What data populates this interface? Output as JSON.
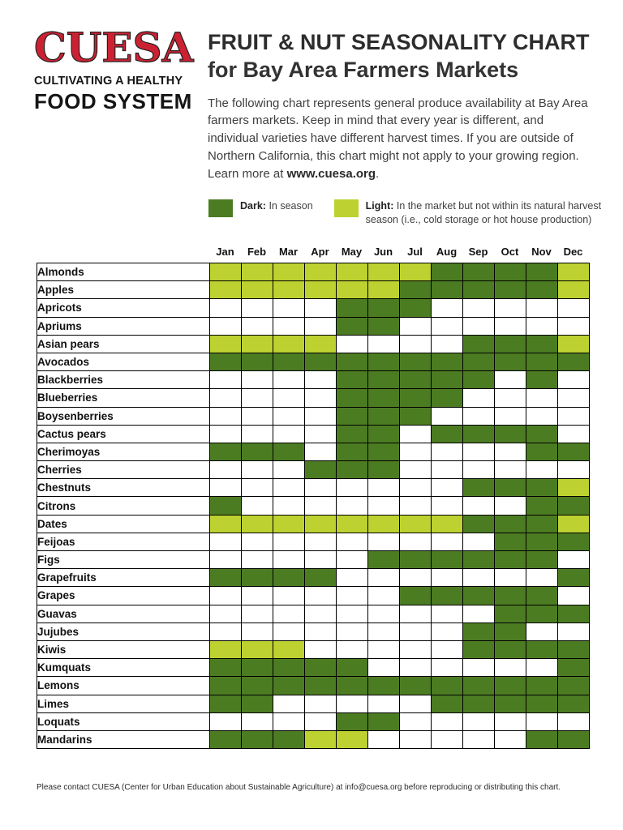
{
  "logo": {
    "name": "CUESA",
    "tagline_line1": "CULTIVATING A HEALTHY",
    "tagline_line2": "FOOD SYSTEM"
  },
  "header": {
    "title_line1": "FRUIT & NUT SEASONALITY CHART",
    "title_line2": "for Bay Area Farmers Markets",
    "description": "The following chart represents general produce availability at Bay Area farmers markets. Keep in mind that every year is different, and individual varieties have different harvest times. If you are outside of Northern California, this chart might not apply to your growing region. Learn more at ",
    "description_link": "www.cuesa.org",
    "description_suffix": "."
  },
  "legend": {
    "dark": {
      "label": "Dark:",
      "text": "In season"
    },
    "light": {
      "label": "Light:",
      "text": "In the market but not within its natural harvest season (i.e., cold storage or hot house production)"
    }
  },
  "colors": {
    "dark_green": "#4c7c22",
    "light_green": "#bdd230",
    "logo_red": "#cb2233"
  },
  "chart_data": {
    "type": "heatmap",
    "title": "Fruit & Nut Seasonality Chart for Bay Area Farmers Markets",
    "columns": [
      "Jan",
      "Feb",
      "Mar",
      "Apr",
      "May",
      "Jun",
      "Jul",
      "Aug",
      "Sep",
      "Oct",
      "Nov",
      "Dec"
    ],
    "legend_meaning": {
      "dark": "In season",
      "light": "In the market but not within natural harvest season",
      "none": "Not available"
    },
    "rows": [
      {
        "label": "Almonds",
        "cells": [
          "light",
          "light",
          "light",
          "light",
          "light",
          "light",
          "light",
          "dark",
          "dark",
          "dark",
          "dark",
          "light"
        ]
      },
      {
        "label": "Apples",
        "cells": [
          "light",
          "light",
          "light",
          "light",
          "light",
          "light",
          "dark",
          "dark",
          "dark",
          "dark",
          "dark",
          "light"
        ]
      },
      {
        "label": "Apricots",
        "cells": [
          "none",
          "none",
          "none",
          "none",
          "dark",
          "dark",
          "dark",
          "none",
          "none",
          "none",
          "none",
          "none"
        ]
      },
      {
        "label": "Apriums",
        "cells": [
          "none",
          "none",
          "none",
          "none",
          "dark",
          "dark",
          "none",
          "none",
          "none",
          "none",
          "none",
          "none"
        ]
      },
      {
        "label": "Asian pears",
        "cells": [
          "light",
          "light",
          "light",
          "light",
          "none",
          "none",
          "none",
          "none",
          "dark",
          "dark",
          "dark",
          "light"
        ]
      },
      {
        "label": "Avocados",
        "cells": [
          "dark",
          "dark",
          "dark",
          "dark",
          "dark",
          "dark",
          "dark",
          "dark",
          "dark",
          "dark",
          "dark",
          "dark"
        ]
      },
      {
        "label": "Blackberries",
        "cells": [
          "none",
          "none",
          "none",
          "none",
          "dark",
          "dark",
          "dark",
          "dark",
          "dark",
          "none",
          "dark",
          "none"
        ]
      },
      {
        "label": "Blueberries",
        "cells": [
          "none",
          "none",
          "none",
          "none",
          "dark",
          "dark",
          "dark",
          "dark",
          "none",
          "none",
          "none",
          "none"
        ]
      },
      {
        "label": "Boysenberries",
        "cells": [
          "none",
          "none",
          "none",
          "none",
          "dark",
          "dark",
          "dark",
          "none",
          "none",
          "none",
          "none",
          "none"
        ]
      },
      {
        "label": "Cactus pears",
        "cells": [
          "none",
          "none",
          "none",
          "none",
          "dark",
          "dark",
          "none",
          "dark",
          "dark",
          "dark",
          "dark",
          "none"
        ]
      },
      {
        "label": "Cherimoyas",
        "cells": [
          "dark",
          "dark",
          "dark",
          "none",
          "dark",
          "dark",
          "none",
          "none",
          "none",
          "none",
          "dark",
          "dark"
        ]
      },
      {
        "label": "Cherries",
        "cells": [
          "none",
          "none",
          "none",
          "dark",
          "dark",
          "dark",
          "none",
          "none",
          "none",
          "none",
          "none",
          "none"
        ]
      },
      {
        "label": "Chestnuts",
        "cells": [
          "none",
          "none",
          "none",
          "none",
          "none",
          "none",
          "none",
          "none",
          "dark",
          "dark",
          "dark",
          "light"
        ]
      },
      {
        "label": "Citrons",
        "cells": [
          "dark",
          "none",
          "none",
          "none",
          "none",
          "none",
          "none",
          "none",
          "none",
          "none",
          "dark",
          "dark"
        ]
      },
      {
        "label": "Dates",
        "cells": [
          "light",
          "light",
          "light",
          "light",
          "light",
          "light",
          "light",
          "light",
          "dark",
          "dark",
          "dark",
          "light"
        ]
      },
      {
        "label": "Feijoas",
        "cells": [
          "none",
          "none",
          "none",
          "none",
          "none",
          "none",
          "none",
          "none",
          "none",
          "dark",
          "dark",
          "dark"
        ]
      },
      {
        "label": "Figs",
        "cells": [
          "none",
          "none",
          "none",
          "none",
          "none",
          "dark",
          "dark",
          "dark",
          "dark",
          "dark",
          "dark",
          "none"
        ]
      },
      {
        "label": "Grapefruits",
        "cells": [
          "dark",
          "dark",
          "dark",
          "dark",
          "none",
          "none",
          "none",
          "none",
          "none",
          "none",
          "none",
          "dark"
        ]
      },
      {
        "label": "Grapes",
        "cells": [
          "none",
          "none",
          "none",
          "none",
          "none",
          "none",
          "dark",
          "dark",
          "dark",
          "dark",
          "dark",
          "none"
        ]
      },
      {
        "label": "Guavas",
        "cells": [
          "none",
          "none",
          "none",
          "none",
          "none",
          "none",
          "none",
          "none",
          "none",
          "dark",
          "dark",
          "dark"
        ]
      },
      {
        "label": "Jujubes",
        "cells": [
          "none",
          "none",
          "none",
          "none",
          "none",
          "none",
          "none",
          "none",
          "dark",
          "dark",
          "none",
          "none"
        ]
      },
      {
        "label": "Kiwis",
        "cells": [
          "light",
          "light",
          "light",
          "none",
          "none",
          "none",
          "none",
          "none",
          "dark",
          "dark",
          "dark",
          "dark"
        ]
      },
      {
        "label": "Kumquats",
        "cells": [
          "dark",
          "dark",
          "dark",
          "dark",
          "dark",
          "none",
          "none",
          "none",
          "none",
          "none",
          "none",
          "dark"
        ]
      },
      {
        "label": "Lemons",
        "cells": [
          "dark",
          "dark",
          "dark",
          "dark",
          "dark",
          "dark",
          "dark",
          "dark",
          "dark",
          "dark",
          "dark",
          "dark"
        ]
      },
      {
        "label": "Limes",
        "cells": [
          "dark",
          "dark",
          "none",
          "none",
          "none",
          "none",
          "none",
          "dark",
          "dark",
          "dark",
          "dark",
          "dark"
        ]
      },
      {
        "label": "Loquats",
        "cells": [
          "none",
          "none",
          "none",
          "none",
          "dark",
          "dark",
          "none",
          "none",
          "none",
          "none",
          "none",
          "none"
        ]
      },
      {
        "label": "Mandarins",
        "cells": [
          "dark",
          "dark",
          "dark",
          "light",
          "light",
          "none",
          "none",
          "none",
          "none",
          "none",
          "dark",
          "dark"
        ]
      }
    ]
  },
  "footer": {
    "text": "Please contact CUESA (Center for Urban Education about Sustainable Agriculture) at info@cuesa.org before reproducing or distributing this chart."
  }
}
